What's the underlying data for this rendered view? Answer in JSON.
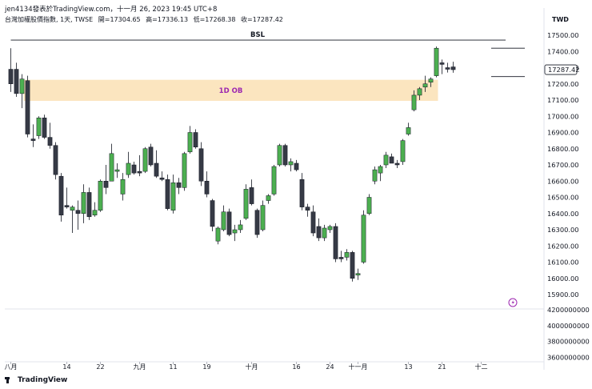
{
  "header": {
    "line1": "jen4134發表於TradingView.com，十一月 26, 2023 19:45 UTC+8",
    "symbol_line": "台灣加權股價指數, 1天, TWSE",
    "open_label": "開",
    "open_value": "=17304.65",
    "high_label": "高",
    "high_value": "=17336.13",
    "low_label": "低",
    "low_value": "=17268.38",
    "close_label": "收",
    "close_value": "=17287.42"
  },
  "currency": "TWD",
  "footer": {
    "brand": "TradingView"
  },
  "chart_data": {
    "type": "candlestick",
    "price_axis": {
      "ticks": [
        17500,
        17400,
        17300,
        17200,
        17100,
        17000,
        16900,
        16800,
        16700,
        16600,
        16500,
        16400,
        16300,
        16200,
        16100,
        16000,
        15900
      ],
      "tick_labels": [
        "17500.00",
        "17400.00",
        "17300.00",
        "17200.00",
        "17100.00",
        "17000.00",
        "16900.00",
        "16800.00",
        "16700.00",
        "16600.00",
        "16500.00",
        "16400.00",
        "16300.00",
        "16200.00",
        "16100.00",
        "16000.00",
        "15900.00"
      ],
      "last_price_label": "17287.42",
      "last_price": 17287.42
    },
    "volume_axis": {
      "ticks": [
        4200000000,
        4000000000,
        3800000000,
        3600000000
      ],
      "tick_labels": [
        "4200000000",
        "4000000000",
        "3800000000",
        "3600000000"
      ]
    },
    "x_axis": {
      "labels": [
        {
          "i": 0,
          "text": "八月"
        },
        {
          "i": 10,
          "text": "14"
        },
        {
          "i": 16,
          "text": "22"
        },
        {
          "i": 23,
          "text": "九月"
        },
        {
          "i": 29,
          "text": "11"
        },
        {
          "i": 35,
          "text": "19"
        },
        {
          "i": 43,
          "text": "十月"
        },
        {
          "i": 51,
          "text": "16"
        },
        {
          "i": 57,
          "text": "24"
        },
        {
          "i": 62,
          "text": "十一月"
        },
        {
          "i": 71,
          "text": "13"
        },
        {
          "i": 77,
          "text": "21"
        },
        {
          "i": 84,
          "text": "十二"
        }
      ]
    },
    "annotations": {
      "bsl_label": "BSL",
      "bsl_price": 17470,
      "ob_label": "1D OB",
      "ob_top": 17225,
      "ob_bottom": 17095,
      "ob_start_index": 2,
      "ob_end_index": 76,
      "range_high": 17420,
      "range_low": 17245
    },
    "candles": [
      {
        "o": 17200,
        "h": 17420,
        "l": 17150,
        "c": 17290,
        "dir": "down"
      },
      {
        "o": 17290,
        "h": 17330,
        "l": 17120,
        "c": 17140,
        "dir": "down"
      },
      {
        "o": 17140,
        "h": 17260,
        "l": 17050,
        "c": 17230,
        "dir": "up"
      },
      {
        "o": 17220,
        "h": 17250,
        "l": 16870,
        "c": 16890,
        "dir": "down"
      },
      {
        "o": 16860,
        "h": 16950,
        "l": 16810,
        "c": 16850,
        "dir": "down"
      },
      {
        "o": 16880,
        "h": 17000,
        "l": 16860,
        "c": 16990,
        "dir": "up"
      },
      {
        "o": 16990,
        "h": 17010,
        "l": 16860,
        "c": 16870,
        "dir": "down"
      },
      {
        "o": 16870,
        "h": 16960,
        "l": 16800,
        "c": 16820,
        "dir": "down"
      },
      {
        "o": 16820,
        "h": 16840,
        "l": 16610,
        "c": 16640,
        "dir": "down"
      },
      {
        "o": 16630,
        "h": 16650,
        "l": 16350,
        "c": 16390,
        "dir": "down"
      },
      {
        "o": 16440,
        "h": 16560,
        "l": 16430,
        "c": 16450,
        "dir": "down"
      },
      {
        "o": 16440,
        "h": 16450,
        "l": 16280,
        "c": 16420,
        "dir": "up"
      },
      {
        "o": 16420,
        "h": 16480,
        "l": 16300,
        "c": 16400,
        "dir": "down"
      },
      {
        "o": 16400,
        "h": 16580,
        "l": 16340,
        "c": 16530,
        "dir": "up"
      },
      {
        "o": 16530,
        "h": 16560,
        "l": 16360,
        "c": 16380,
        "dir": "down"
      },
      {
        "o": 16390,
        "h": 16470,
        "l": 16380,
        "c": 16420,
        "dir": "up"
      },
      {
        "o": 16420,
        "h": 16610,
        "l": 16410,
        "c": 16600,
        "dir": "up"
      },
      {
        "o": 16600,
        "h": 16700,
        "l": 16520,
        "c": 16560,
        "dir": "down"
      },
      {
        "o": 16600,
        "h": 16830,
        "l": 16600,
        "c": 16770,
        "dir": "up"
      },
      {
        "o": 16670,
        "h": 16710,
        "l": 16620,
        "c": 16660,
        "dir": "up"
      },
      {
        "o": 16520,
        "h": 16650,
        "l": 16480,
        "c": 16610,
        "dir": "up"
      },
      {
        "o": 16640,
        "h": 16780,
        "l": 16620,
        "c": 16710,
        "dir": "up"
      },
      {
        "o": 16700,
        "h": 16720,
        "l": 16640,
        "c": 16650,
        "dir": "down"
      },
      {
        "o": 16650,
        "h": 16760,
        "l": 16630,
        "c": 16660,
        "dir": "down"
      },
      {
        "o": 16660,
        "h": 16810,
        "l": 16650,
        "c": 16800,
        "dir": "up"
      },
      {
        "o": 16810,
        "h": 16830,
        "l": 16690,
        "c": 16700,
        "dir": "down"
      },
      {
        "o": 16710,
        "h": 16790,
        "l": 16620,
        "c": 16630,
        "dir": "down"
      },
      {
        "o": 16620,
        "h": 16660,
        "l": 16600,
        "c": 16610,
        "dir": "down"
      },
      {
        "o": 16610,
        "h": 16640,
        "l": 16420,
        "c": 16430,
        "dir": "down"
      },
      {
        "o": 16420,
        "h": 16640,
        "l": 16400,
        "c": 16590,
        "dir": "up"
      },
      {
        "o": 16590,
        "h": 16620,
        "l": 16520,
        "c": 16560,
        "dir": "down"
      },
      {
        "o": 16560,
        "h": 16780,
        "l": 16540,
        "c": 16770,
        "dir": "up"
      },
      {
        "o": 16780,
        "h": 16940,
        "l": 16770,
        "c": 16900,
        "dir": "up"
      },
      {
        "o": 16900,
        "h": 16920,
        "l": 16800,
        "c": 16810,
        "dir": "down"
      },
      {
        "o": 16800,
        "h": 16840,
        "l": 16570,
        "c": 16600,
        "dir": "down"
      },
      {
        "o": 16600,
        "h": 16660,
        "l": 16500,
        "c": 16520,
        "dir": "down"
      },
      {
        "o": 16480,
        "h": 16490,
        "l": 16290,
        "c": 16320,
        "dir": "down"
      },
      {
        "o": 16230,
        "h": 16320,
        "l": 16210,
        "c": 16310,
        "dir": "up"
      },
      {
        "o": 16300,
        "h": 16450,
        "l": 16290,
        "c": 16410,
        "dir": "up"
      },
      {
        "o": 16410,
        "h": 16430,
        "l": 16260,
        "c": 16270,
        "dir": "down"
      },
      {
        "o": 16280,
        "h": 16330,
        "l": 16230,
        "c": 16300,
        "dir": "up"
      },
      {
        "o": 16300,
        "h": 16360,
        "l": 16280,
        "c": 16330,
        "dir": "up"
      },
      {
        "o": 16370,
        "h": 16580,
        "l": 16360,
        "c": 16550,
        "dir": "up"
      },
      {
        "o": 16560,
        "h": 16610,
        "l": 16450,
        "c": 16460,
        "dir": "down"
      },
      {
        "o": 16420,
        "h": 16430,
        "l": 16250,
        "c": 16270,
        "dir": "down"
      },
      {
        "o": 16300,
        "h": 16480,
        "l": 16290,
        "c": 16450,
        "dir": "up"
      },
      {
        "o": 16480,
        "h": 16520,
        "l": 16460,
        "c": 16510,
        "dir": "up"
      },
      {
        "o": 16520,
        "h": 16700,
        "l": 16510,
        "c": 16690,
        "dir": "up"
      },
      {
        "o": 16700,
        "h": 16830,
        "l": 16690,
        "c": 16820,
        "dir": "up"
      },
      {
        "o": 16820,
        "h": 16830,
        "l": 16690,
        "c": 16700,
        "dir": "down"
      },
      {
        "o": 16700,
        "h": 16740,
        "l": 16660,
        "c": 16720,
        "dir": "up"
      },
      {
        "o": 16710,
        "h": 16730,
        "l": 16660,
        "c": 16670,
        "dir": "down"
      },
      {
        "o": 16610,
        "h": 16650,
        "l": 16420,
        "c": 16440,
        "dir": "down"
      },
      {
        "o": 16440,
        "h": 16460,
        "l": 16380,
        "c": 16420,
        "dir": "down"
      },
      {
        "o": 16410,
        "h": 16450,
        "l": 16260,
        "c": 16280,
        "dir": "down"
      },
      {
        "o": 16320,
        "h": 16370,
        "l": 16230,
        "c": 16250,
        "dir": "down"
      },
      {
        "o": 16250,
        "h": 16330,
        "l": 16230,
        "c": 16310,
        "dir": "up"
      },
      {
        "o": 16300,
        "h": 16330,
        "l": 16280,
        "c": 16320,
        "dir": "up"
      },
      {
        "o": 16320,
        "h": 16340,
        "l": 16100,
        "c": 16120,
        "dir": "down"
      },
      {
        "o": 16120,
        "h": 16170,
        "l": 16100,
        "c": 16130,
        "dir": "down"
      },
      {
        "o": 16130,
        "h": 16180,
        "l": 16110,
        "c": 16160,
        "dir": "up"
      },
      {
        "o": 16160,
        "h": 16170,
        "l": 15980,
        "c": 16000,
        "dir": "down"
      },
      {
        "o": 16020,
        "h": 16060,
        "l": 15990,
        "c": 16030,
        "dir": "up"
      },
      {
        "o": 16100,
        "h": 16420,
        "l": 16090,
        "c": 16390,
        "dir": "up"
      },
      {
        "o": 16400,
        "h": 16520,
        "l": 16390,
        "c": 16500,
        "dir": "up"
      },
      {
        "o": 16600,
        "h": 16690,
        "l": 16580,
        "c": 16670,
        "dir": "up"
      },
      {
        "o": 16650,
        "h": 16700,
        "l": 16600,
        "c": 16690,
        "dir": "up"
      },
      {
        "o": 16700,
        "h": 16780,
        "l": 16680,
        "c": 16760,
        "dir": "up"
      },
      {
        "o": 16750,
        "h": 16770,
        "l": 16710,
        "c": 16710,
        "dir": "down"
      },
      {
        "o": 16710,
        "h": 16730,
        "l": 16680,
        "c": 16700,
        "dir": "down"
      },
      {
        "o": 16720,
        "h": 16860,
        "l": 16700,
        "c": 16850,
        "dir": "up"
      },
      {
        "o": 16890,
        "h": 16960,
        "l": 16880,
        "c": 16930,
        "dir": "up"
      },
      {
        "o": 17040,
        "h": 17160,
        "l": 17030,
        "c": 17130,
        "dir": "up"
      },
      {
        "o": 17130,
        "h": 17180,
        "l": 17100,
        "c": 17170,
        "dir": "up"
      },
      {
        "o": 17180,
        "h": 17250,
        "l": 17150,
        "c": 17200,
        "dir": "up"
      },
      {
        "o": 17210,
        "h": 17240,
        "l": 17180,
        "c": 17230,
        "dir": "up"
      },
      {
        "o": 17250,
        "h": 17430,
        "l": 17240,
        "c": 17420,
        "dir": "up"
      },
      {
        "o": 17330,
        "h": 17350,
        "l": 17260,
        "c": 17320,
        "dir": "down"
      },
      {
        "o": 17300,
        "h": 17330,
        "l": 17270,
        "c": 17290,
        "dir": "down"
      },
      {
        "o": 17304.65,
        "h": 17336.13,
        "l": 17268.38,
        "c": 17287.42,
        "dir": "down"
      }
    ]
  }
}
